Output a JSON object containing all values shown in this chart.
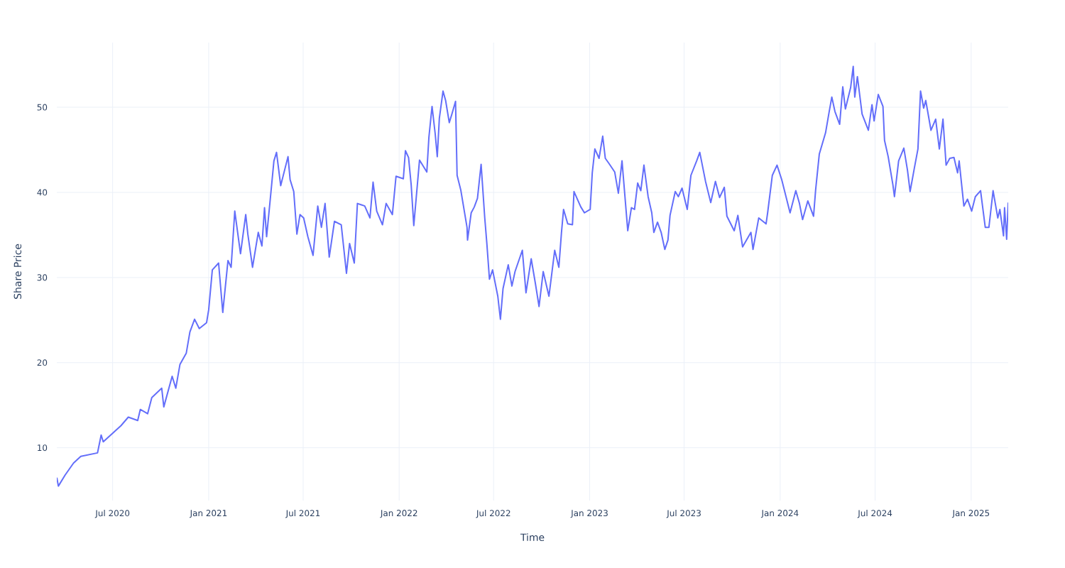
{
  "chart_data": {
    "type": "line",
    "xlabel": "Time",
    "ylabel": "Share Price",
    "grid": true,
    "xlim": [
      "2020-03-16",
      "2025-03-13"
    ],
    "ylim": [
      3.8,
      57.6
    ],
    "yticks": [
      10,
      20,
      30,
      40,
      50
    ],
    "xticks": [
      {
        "value": "2020-07-01",
        "label": "Jul 2020"
      },
      {
        "value": "2021-01-01",
        "label": "Jan 2021"
      },
      {
        "value": "2021-07-01",
        "label": "Jul 2021"
      },
      {
        "value": "2022-01-01",
        "label": "Jan 2022"
      },
      {
        "value": "2022-07-01",
        "label": "Jul 2022"
      },
      {
        "value": "2023-01-01",
        "label": "Jan 2023"
      },
      {
        "value": "2023-07-01",
        "label": "Jul 2023"
      },
      {
        "value": "2024-01-01",
        "label": "Jan 2024"
      },
      {
        "value": "2024-07-01",
        "label": "Jul 2024"
      },
      {
        "value": "2025-01-01",
        "label": "Jan 2025"
      }
    ],
    "x": [
      "2020-03-16",
      "2020-03-19",
      "2020-04-01",
      "2020-04-17",
      "2020-05-01",
      "2020-06-02",
      "2020-06-09",
      "2020-06-13",
      "2020-07-17",
      "2020-07-31",
      "2020-08-18",
      "2020-08-23",
      "2020-09-06",
      "2020-09-14",
      "2020-10-03",
      "2020-10-07",
      "2020-10-23",
      "2020-10-30",
      "2020-11-07",
      "2020-11-19",
      "2020-11-26",
      "2020-12-05",
      "2020-12-14",
      "2020-12-28",
      "2021-01-01",
      "2021-01-08",
      "2021-01-20",
      "2021-01-28",
      "2021-02-07",
      "2021-02-13",
      "2021-02-20",
      "2021-03-03",
      "2021-03-13",
      "2021-03-17",
      "2021-03-26",
      "2021-04-06",
      "2021-04-13",
      "2021-04-18",
      "2021-04-22",
      "2021-04-29",
      "2021-05-06",
      "2021-05-11",
      "2021-05-19",
      "2021-06-02",
      "2021-06-06",
      "2021-06-13",
      "2021-06-19",
      "2021-06-25",
      "2021-07-02",
      "2021-07-10",
      "2021-07-20",
      "2021-07-29",
      "2021-08-05",
      "2021-08-12",
      "2021-08-20",
      "2021-08-30",
      "2021-09-12",
      "2021-09-22",
      "2021-09-28",
      "2021-10-07",
      "2021-10-13",
      "2021-10-27",
      "2021-11-06",
      "2021-11-12",
      "2021-11-19",
      "2021-11-30",
      "2021-12-07",
      "2021-12-19",
      "2021-12-26",
      "2022-01-09",
      "2022-01-13",
      "2022-01-19",
      "2022-01-24",
      "2022-01-29",
      "2022-02-09",
      "2022-02-23",
      "2022-02-27",
      "2022-03-05",
      "2022-03-11",
      "2022-03-15",
      "2022-03-19",
      "2022-03-26",
      "2022-03-31",
      "2022-04-07",
      "2022-04-12",
      "2022-04-19",
      "2022-04-22",
      "2022-04-29",
      "2022-05-11",
      "2022-05-12",
      "2022-05-19",
      "2022-05-25",
      "2022-05-31",
      "2022-06-07",
      "2022-06-14",
      "2022-06-18",
      "2022-06-23",
      "2022-06-29",
      "2022-07-09",
      "2022-07-14",
      "2022-07-19",
      "2022-07-29",
      "2022-08-05",
      "2022-08-11",
      "2022-08-25",
      "2022-09-01",
      "2022-09-11",
      "2022-09-19",
      "2022-09-26",
      "2022-10-04",
      "2022-10-15",
      "2022-10-26",
      "2022-11-03",
      "2022-11-08",
      "2022-11-12",
      "2022-11-20",
      "2022-11-29",
      "2022-12-02",
      "2022-12-15",
      "2022-12-22",
      "2023-01-02",
      "2023-01-06",
      "2023-01-11",
      "2023-01-19",
      "2023-01-26",
      "2023-01-31",
      "2023-02-07",
      "2023-02-18",
      "2023-02-25",
      "2023-03-04",
      "2023-03-15",
      "2023-03-22",
      "2023-03-28",
      "2023-04-03",
      "2023-04-09",
      "2023-04-15",
      "2023-04-23",
      "2023-04-30",
      "2023-05-04",
      "2023-05-11",
      "2023-05-18",
      "2023-05-25",
      "2023-05-31",
      "2023-06-04",
      "2023-06-14",
      "2023-06-20",
      "2023-06-27",
      "2023-07-07",
      "2023-07-14",
      "2023-07-25",
      "2023-07-31",
      "2023-08-11",
      "2023-08-21",
      "2023-08-30",
      "2023-09-07",
      "2023-09-16",
      "2023-09-21",
      "2023-10-05",
      "2023-10-12",
      "2023-10-21",
      "2023-11-06",
      "2023-11-10",
      "2023-11-21",
      "2023-12-05",
      "2023-12-08",
      "2023-12-17",
      "2023-12-26",
      "2024-01-04",
      "2024-01-20",
      "2024-01-31",
      "2024-02-07",
      "2024-02-13",
      "2024-02-23",
      "2024-03-05",
      "2024-03-09",
      "2024-03-16",
      "2024-03-28",
      "2024-04-04",
      "2024-04-09",
      "2024-04-15",
      "2024-04-24",
      "2024-04-30",
      "2024-05-05",
      "2024-05-15",
      "2024-05-20",
      "2024-05-23",
      "2024-05-28",
      "2024-06-06",
      "2024-06-18",
      "2024-06-25",
      "2024-06-29",
      "2024-07-07",
      "2024-07-16",
      "2024-07-19",
      "2024-07-26",
      "2024-08-04",
      "2024-08-07",
      "2024-08-15",
      "2024-08-25",
      "2024-09-01",
      "2024-09-06",
      "2024-09-14",
      "2024-09-21",
      "2024-09-26",
      "2024-10-02",
      "2024-10-06",
      "2024-10-16",
      "2024-10-25",
      "2024-11-01",
      "2024-11-08",
      "2024-11-14",
      "2024-11-21",
      "2024-11-29",
      "2024-12-06",
      "2024-12-09",
      "2024-12-18",
      "2024-12-25",
      "2025-01-02",
      "2025-01-09",
      "2025-01-19",
      "2025-01-28",
      "2025-02-04",
      "2025-02-12",
      "2025-02-21",
      "2025-02-25",
      "2025-03-04",
      "2025-03-06",
      "2025-03-10",
      "2025-03-13"
    ],
    "series": [
      {
        "color": "#636efa",
        "values": [
          6.5,
          5.5,
          6.8,
          8.2,
          9.0,
          9.4,
          11.5,
          10.7,
          12.6,
          13.6,
          13.2,
          14.5,
          14.0,
          15.9,
          17.0,
          14.8,
          18.4,
          17.0,
          19.8,
          21.1,
          23.6,
          25.1,
          24.0,
          24.7,
          26.2,
          30.9,
          31.7,
          25.9,
          32.0,
          31.2,
          37.8,
          32.8,
          37.4,
          35.1,
          31.2,
          35.3,
          33.7,
          38.2,
          34.8,
          39.2,
          43.7,
          44.7,
          40.8,
          44.2,
          41.5,
          40.1,
          35.1,
          37.4,
          37.0,
          34.8,
          32.6,
          38.4,
          35.9,
          38.7,
          32.4,
          36.6,
          36.2,
          30.5,
          34.0,
          31.7,
          38.7,
          38.4,
          37.0,
          41.2,
          37.8,
          36.2,
          38.7,
          37.4,
          41.9,
          41.6,
          44.9,
          44.1,
          40.9,
          36.1,
          43.8,
          42.4,
          46.5,
          50.1,
          46.9,
          44.2,
          48.7,
          51.9,
          50.8,
          48.2,
          49.2,
          50.7,
          42.0,
          40.3,
          35.9,
          34.4,
          37.6,
          38.3,
          39.3,
          43.3,
          37.0,
          34.0,
          29.8,
          30.9,
          27.8,
          25.1,
          28.7,
          31.5,
          29.0,
          30.7,
          33.2,
          28.2,
          32.2,
          29.3,
          26.6,
          30.7,
          27.8,
          33.2,
          31.2,
          35.3,
          38.0,
          36.3,
          36.2,
          40.1,
          38.3,
          37.6,
          38.0,
          42.3,
          45.1,
          44.0,
          46.6,
          44.0,
          43.4,
          42.4,
          39.9,
          43.7,
          35.5,
          38.2,
          38.0,
          41.1,
          40.2,
          43.2,
          39.5,
          37.6,
          35.3,
          36.5,
          35.3,
          33.3,
          34.4,
          37.3,
          40.1,
          39.5,
          40.5,
          38.0,
          42.0,
          43.7,
          44.7,
          41.3,
          38.8,
          41.3,
          39.4,
          40.6,
          37.2,
          35.5,
          37.3,
          33.6,
          35.3,
          33.3,
          37.0,
          36.3,
          37.6,
          42.0,
          43.2,
          41.5,
          37.6,
          40.2,
          38.7,
          36.8,
          39.0,
          37.2,
          40.3,
          44.5,
          47.0,
          49.5,
          51.2,
          49.5,
          48.0,
          52.4,
          49.8,
          52.3,
          54.8,
          51.2,
          53.6,
          49.2,
          47.3,
          50.3,
          48.4,
          51.5,
          50.1,
          46.1,
          44.2,
          40.9,
          39.5,
          43.7,
          45.2,
          42.6,
          40.1,
          42.8,
          45.1,
          51.9,
          49.9,
          50.8,
          47.3,
          48.6,
          45.1,
          48.6,
          43.2,
          44.0,
          44.1,
          42.3,
          43.7,
          38.4,
          39.2,
          37.8,
          39.5,
          40.2,
          35.9,
          35.9,
          40.2,
          37.0,
          38.0,
          34.9,
          38.2,
          34.5,
          38.8
        ]
      }
    ]
  }
}
